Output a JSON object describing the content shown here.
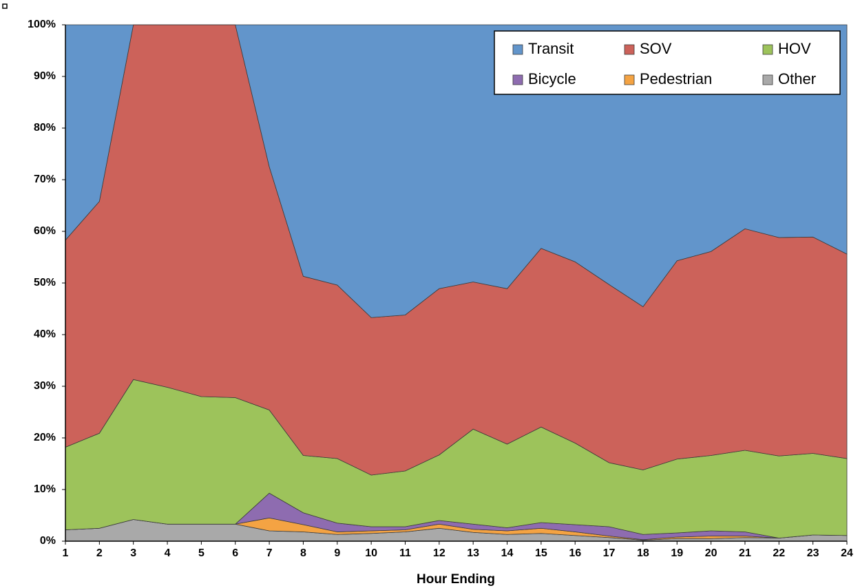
{
  "chart_data": {
    "type": "stacked-area",
    "x_label": "Hour Ending",
    "x": [
      1,
      2,
      3,
      4,
      5,
      6,
      7,
      8,
      9,
      10,
      11,
      12,
      13,
      14,
      15,
      16,
      17,
      18,
      19,
      20,
      21,
      22,
      23,
      24
    ],
    "xlim": [
      1,
      24
    ],
    "xticks": [
      1,
      2,
      3,
      4,
      5,
      6,
      7,
      8,
      9,
      10,
      11,
      12,
      13,
      14,
      15,
      16,
      17,
      18,
      19,
      20,
      21,
      22,
      23,
      24
    ],
    "ylim": [
      0,
      100
    ],
    "yticks": [
      {
        "value": 0,
        "label": "0%"
      },
      {
        "value": 10,
        "label": "10%"
      },
      {
        "value": 20,
        "label": "20%"
      },
      {
        "value": 30,
        "label": "30%"
      },
      {
        "value": 40,
        "label": "40%"
      },
      {
        "value": 50,
        "label": "50%"
      },
      {
        "value": 60,
        "label": "60%"
      },
      {
        "value": 70,
        "label": "70%"
      },
      {
        "value": 80,
        "label": "80%"
      },
      {
        "value": 90,
        "label": "90%"
      },
      {
        "value": 100,
        "label": "100%"
      }
    ],
    "legend": "top-right",
    "series": [
      {
        "name": "Other",
        "color": "#a9a9a9",
        "values": [
          2.2,
          2.5,
          4.2,
          3.3,
          3.3,
          3.3,
          2.0,
          1.8,
          1.3,
          1.5,
          1.8,
          2.5,
          1.7,
          1.3,
          1.5,
          1.1,
          0.7,
          0.2,
          0.5,
          0.5,
          0.7,
          0.6,
          1.2,
          1.1
        ]
      },
      {
        "name": "Pedestrian",
        "color": "#f4a343",
        "values": [
          0,
          0,
          0,
          0,
          0,
          0,
          2.5,
          1.4,
          0.5,
          0.5,
          0.4,
          0.8,
          0.6,
          0.7,
          1.0,
          0.7,
          0.3,
          0.1,
          0.3,
          0.5,
          0.3,
          0,
          0,
          0
        ]
      },
      {
        "name": "Bicycle",
        "color": "#8e6cb0",
        "values": [
          0,
          0,
          0,
          0,
          0,
          0,
          4.8,
          2.3,
          1.7,
          0.8,
          0.6,
          0.7,
          1.0,
          0.6,
          1.1,
          1.4,
          1.8,
          1.0,
          0.8,
          1.0,
          0.8,
          0,
          0,
          0
        ]
      },
      {
        "name": "HOV",
        "color": "#9dc35b",
        "values": [
          16.0,
          18.4,
          27.1,
          26.5,
          24.7,
          24.5,
          16.1,
          11.1,
          12.5,
          10.0,
          10.8,
          12.7,
          18.4,
          16.2,
          18.5,
          15.8,
          12.4,
          12.5,
          14.3,
          14.6,
          15.8,
          15.9,
          15.8,
          14.9
        ]
      },
      {
        "name": "SOV",
        "color": "#cc625a",
        "values": [
          40.1,
          44.9,
          68.7,
          70.2,
          72.0,
          72.2,
          47.1,
          34.7,
          33.6,
          30.5,
          30.2,
          32.2,
          28.5,
          30.1,
          34.6,
          35.1,
          34.5,
          31.6,
          38.4,
          39.5,
          42.9,
          42.3,
          41.9,
          39.6
        ]
      },
      {
        "name": "Transit",
        "color": "#6295cb",
        "values": [
          41.7,
          34.2,
          0,
          0,
          0,
          0,
          27.5,
          48.7,
          50.4,
          56.7,
          56.2,
          51.1,
          49.8,
          51.1,
          43.3,
          45.9,
          50.3,
          54.6,
          45.7,
          43.9,
          39.5,
          41.2,
          41.1,
          44.4
        ]
      }
    ]
  }
}
